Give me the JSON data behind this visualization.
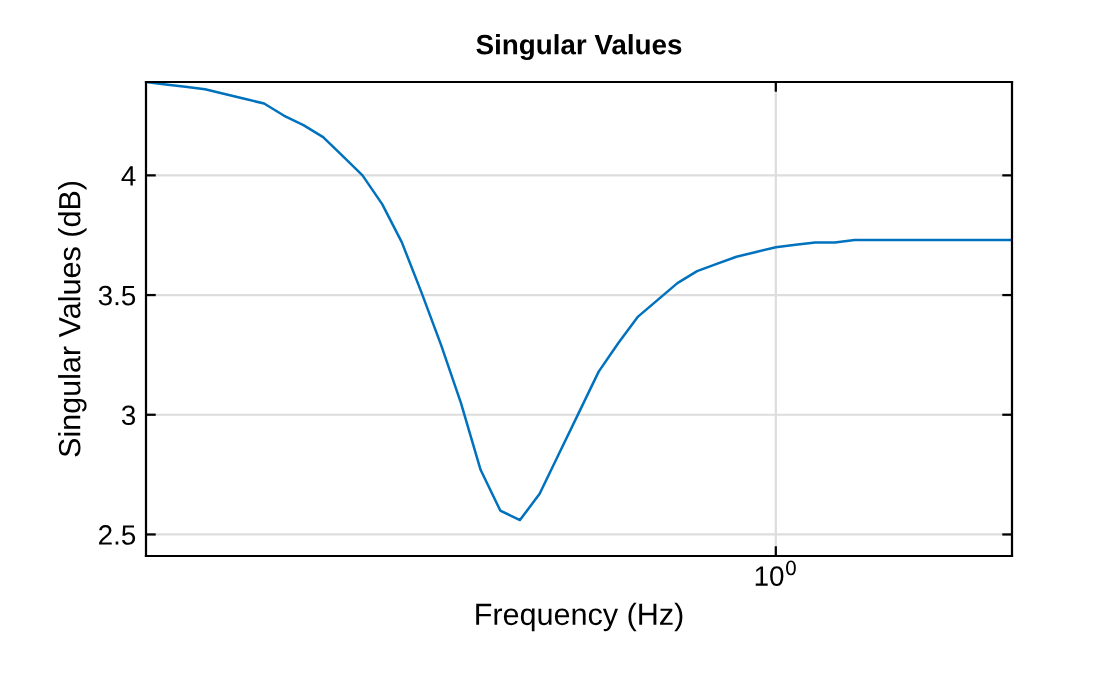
{
  "chart_data": {
    "type": "line",
    "title": "Singular Values",
    "xlabel": "Frequency (Hz)",
    "ylabel": "Singular Values (dB)",
    "grid": true,
    "categories": [
      null,
      null,
      null,
      null,
      null,
      null,
      null,
      null,
      null,
      null,
      null,
      null,
      null,
      null,
      null,
      null,
      null,
      null,
      null,
      null,
      null,
      null,
      null,
      null,
      null,
      null,
      null,
      null,
      null,
      null,
      null,
      null,
      "10$^{0}$",
      null,
      null,
      null,
      null,
      null,
      null,
      null,
      null,
      null,
      null,
      null,
      null
    ],
    "series": [
      {
        "color": "#0072bd",
        "values": [
          4.39,
          4.38,
          4.37,
          4.36,
          4.34,
          4.32,
          4.3,
          4.25,
          4.21,
          4.16,
          4.08,
          4.0,
          3.88,
          3.72,
          3.51,
          3.29,
          3.05,
          2.77,
          2.6,
          2.56,
          2.67,
          2.84,
          3.01,
          3.18,
          3.3,
          3.41,
          3.48,
          3.55,
          3.6,
          3.63,
          3.66,
          3.68,
          3.7,
          3.71,
          3.72,
          3.72,
          3.73,
          3.73,
          3.73,
          3.73,
          3.73,
          3.73,
          3.73,
          3.73,
          3.73
        ]
      }
    ],
    "ylim": [
      2.41,
      4.39
    ],
    "yticks": [
      2.5,
      3,
      3.5,
      4
    ]
  }
}
